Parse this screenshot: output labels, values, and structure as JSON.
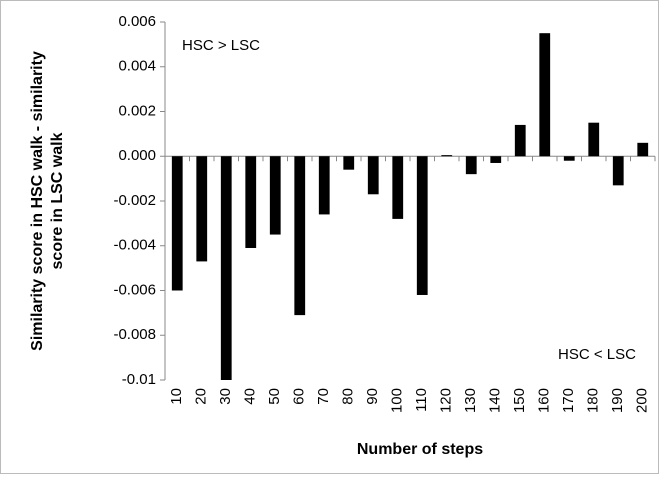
{
  "chart_data": {
    "type": "bar",
    "ylabel": [
      "Similarity score in HSC walk - similarity",
      "score in LSC walk"
    ],
    "xlabel": "Number of steps",
    "annotations": [
      "HSC > LSC",
      "HSC < LSC"
    ],
    "categories": [
      "10",
      "20",
      "30",
      "40",
      "50",
      "60",
      "70",
      "80",
      "90",
      "100",
      "110",
      "120",
      "130",
      "140",
      "150",
      "160",
      "170",
      "180",
      "190",
      "200"
    ],
    "values": [
      -0.006,
      -0.0047,
      -0.01,
      -0.0041,
      -0.0035,
      -0.0071,
      -0.0026,
      -0.0006,
      -0.0017,
      -0.0028,
      -0.0062,
      5e-05,
      -0.0008,
      -0.0003,
      0.0014,
      0.0055,
      -0.0002,
      0.0015,
      -0.0013,
      0.0006
    ],
    "color": "#000000",
    "ylim": [
      -0.01,
      0.006
    ],
    "yticks": [
      0.006,
      0.004,
      0.002,
      {
        "value": 0,
        "label": "0.000"
      },
      -0.002,
      -0.004,
      -0.006,
      -0.008,
      -0.01
    ],
    "grid": false
  }
}
